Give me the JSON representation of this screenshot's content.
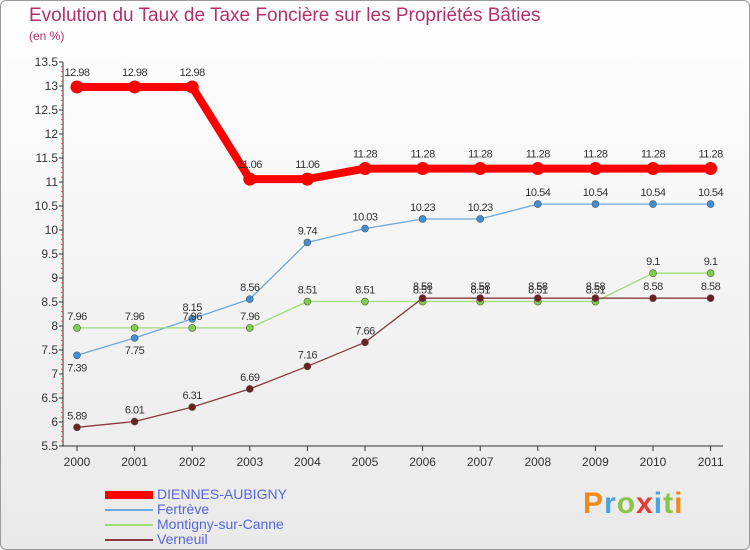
{
  "header": {
    "title": "Evolution du Taux de Taxe Foncière sur les Propriétés Bâties",
    "subtitle": "(en %)"
  },
  "logo": {
    "text": "Proxiti"
  },
  "chart_data": {
    "type": "line",
    "x": [
      "2000",
      "2001",
      "2002",
      "2003",
      "2004",
      "2005",
      "2006",
      "2007",
      "2008",
      "2009",
      "2010",
      "2011"
    ],
    "ylim": [
      5.5,
      13.5
    ],
    "yticks": [
      5.5,
      6,
      6.5,
      7,
      7.5,
      8,
      8.5,
      9,
      9.5,
      10,
      10.5,
      11,
      11.5,
      12,
      12.5,
      13,
      13.5
    ],
    "ytick_labels": [
      "5.5",
      "6",
      "6.5",
      "7",
      "7.5",
      "8",
      "8.5",
      "9",
      "9.5",
      "10",
      "10.5",
      "11",
      "11.5",
      "12",
      "12.5",
      "13",
      "13.5"
    ],
    "grid": false,
    "legend_position": "bottom-left",
    "series": [
      {
        "name": "DIENNES-AUBIGNY",
        "color": "#ff0000",
        "bold": true,
        "values": [
          12.98,
          12.98,
          12.98,
          11.06,
          11.06,
          11.28,
          11.28,
          11.28,
          11.28,
          11.28,
          11.28,
          11.28
        ],
        "labels": [
          "12.98",
          "12.98",
          "12.98",
          "11.06",
          "11.06",
          "11.28",
          "11.28",
          "11.28",
          "11.28",
          "11.28",
          "11.28",
          "11.28"
        ]
      },
      {
        "name": "Fertrève",
        "color": "#6ea8dc",
        "marker": "#3f8fd6",
        "values": [
          7.39,
          7.75,
          8.15,
          8.56,
          9.74,
          10.03,
          10.23,
          10.23,
          10.54,
          10.54,
          10.54,
          10.54
        ],
        "labels": [
          "7.39",
          "7.75",
          "8.15",
          "8.56",
          "9.74",
          "10.03",
          "10.23",
          "10.23",
          "10.54",
          "10.54",
          "10.54",
          "10.54"
        ]
      },
      {
        "name": "Montigny-sur-Canne",
        "color": "#9fdc7a",
        "marker": "#7ed04a",
        "values": [
          7.96,
          7.96,
          7.96,
          7.96,
          8.51,
          8.51,
          8.51,
          8.51,
          8.51,
          8.51,
          9.1,
          9.1
        ],
        "labels": [
          "7.96",
          "7.96",
          "7.96",
          "7.96",
          "8.51",
          "8.51",
          "8.51",
          "8.51",
          "8.51",
          "8.51",
          "9.1",
          "9.1"
        ]
      },
      {
        "name": "Verneuil",
        "color": "#8a3a3a",
        "marker": "#6e1f1f",
        "values": [
          5.89,
          6.01,
          6.31,
          6.69,
          7.16,
          7.66,
          8.58,
          8.58,
          8.58,
          8.58,
          8.58,
          8.58
        ],
        "labels": [
          "5.89",
          "6.01",
          "6.31",
          "6.69",
          "7.16",
          "7.66",
          "8.58",
          "8.58",
          "8.58",
          "8.58",
          "8.58",
          "8.58"
        ]
      }
    ]
  }
}
